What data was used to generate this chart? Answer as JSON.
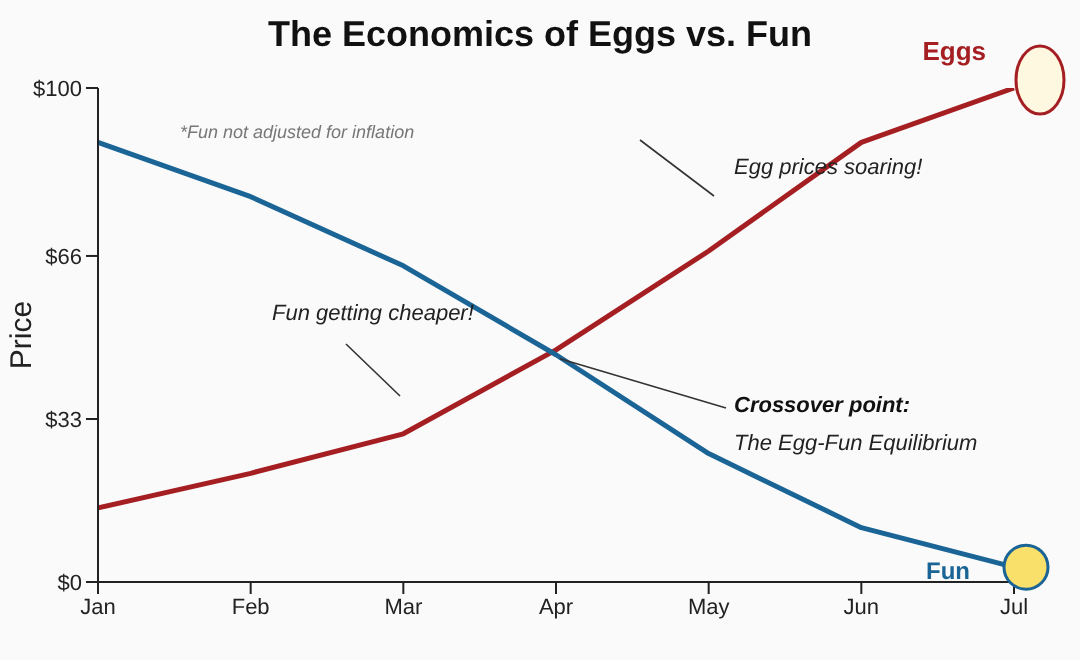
{
  "chart_data": {
    "type": "line",
    "title": "The Economics of Eggs vs. Fun",
    "ylabel": "Price",
    "categories": [
      "Jan",
      "Feb",
      "Mar",
      "Apr",
      "May",
      "Jun",
      "Jul"
    ],
    "series": [
      {
        "name": "Eggs",
        "color": "#a51f22",
        "values": [
          15,
          22,
          30,
          47,
          67,
          89,
          100
        ]
      },
      {
        "name": "Fun",
        "color": "#1a6496",
        "values": [
          89,
          78,
          64,
          46,
          26,
          11,
          3
        ]
      }
    ],
    "ylim": [
      0,
      100
    ],
    "yticks": [
      {
        "value": 0,
        "label": "$0"
      },
      {
        "value": 33,
        "label": "$33"
      },
      {
        "value": 66,
        "label": "$66"
      },
      {
        "value": 100,
        "label": "$100"
      }
    ],
    "annotations": [
      "*Fun not adjusted for inflation",
      "Egg prices soaring!",
      "Fun getting cheaper!",
      {
        "text": "Crossover point:",
        "x": "Apr",
        "y": 46
      },
      "The Egg-Fun Equilibrium"
    ]
  }
}
